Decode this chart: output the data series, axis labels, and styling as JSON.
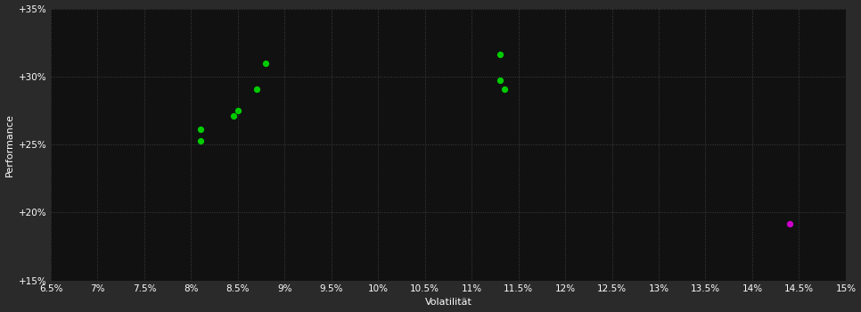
{
  "background_color": "#2a2a2a",
  "plot_bg_color": "#111111",
  "grid_color": "#404040",
  "text_color": "#ffffff",
  "xlabel": "Volatilität",
  "ylabel": "Performance",
  "xlim": [
    0.065,
    0.15
  ],
  "ylim": [
    0.15,
    0.35
  ],
  "xticks": [
    0.065,
    0.07,
    0.075,
    0.08,
    0.085,
    0.09,
    0.095,
    0.1,
    0.105,
    0.11,
    0.115,
    0.12,
    0.125,
    0.13,
    0.135,
    0.14,
    0.145,
    0.15
  ],
  "yticks": [
    0.15,
    0.2,
    0.25,
    0.3,
    0.35
  ],
  "green_points": [
    [
      0.081,
      0.261
    ],
    [
      0.081,
      0.253
    ],
    [
      0.085,
      0.275
    ],
    [
      0.0845,
      0.271
    ],
    [
      0.088,
      0.31
    ],
    [
      0.087,
      0.291
    ],
    [
      0.113,
      0.316
    ],
    [
      0.113,
      0.297
    ],
    [
      0.1135,
      0.291
    ]
  ],
  "magenta_points": [
    [
      0.144,
      0.192
    ]
  ],
  "green_color": "#00cc00",
  "magenta_color": "#cc00cc",
  "marker_size": 18
}
